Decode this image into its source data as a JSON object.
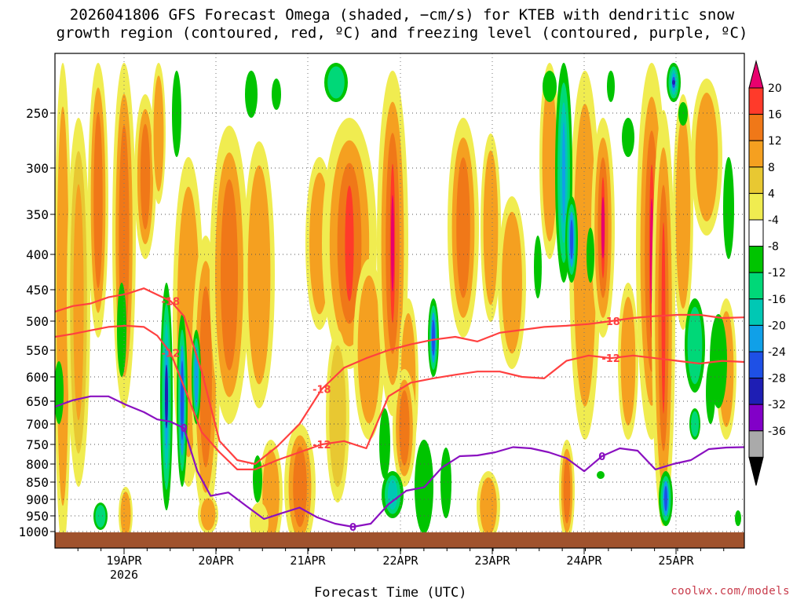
{
  "title": {
    "line1": "2026041806 GFS Forecast Omega (shaded, −cm/s) for KTEB with dendritic snow",
    "line2": "growth region (contoured, red, ºC) and freezing level (contoured, purple, ºC)"
  },
  "x_axis_title": "Forecast Time (UTC)",
  "credit": "coolwx.com/models",
  "chart_data": {
    "type": "heatmap",
    "title": "2026041806 GFS Forecast Omega (shaded, −cm/s) for KTEB with dendritic snow growth region (contoured, red, ºC) and freezing level (contoured, purple, ºC)",
    "xlabel": "Forecast Time (UTC)",
    "ylabel": "",
    "x_ticks": [
      "19APR",
      "20APR",
      "21APR",
      "22APR",
      "23APR",
      "24APR",
      "25APR"
    ],
    "x_tick_sublabel": "2026",
    "xlim": [
      "2026-04-18 06Z",
      "2026-04-25 18Z"
    ],
    "y_ticks": [
      250,
      300,
      350,
      400,
      450,
      500,
      550,
      600,
      650,
      700,
      750,
      800,
      850,
      900,
      950,
      1000
    ],
    "ylim": [
      1000,
      200
    ],
    "y_scale": "log-pressure",
    "grid": true,
    "colorbar": {
      "labels": [
        20,
        16,
        12,
        8,
        4,
        -4,
        -8,
        -12,
        -16,
        -20,
        -24,
        -28,
        -32,
        -36
      ],
      "colors": [
        "#e8006e",
        "#ff3a2a",
        "#f07818",
        "#f5a020",
        "#e8c832",
        "#f0ec50",
        "#ffffff",
        "#00c400",
        "#00d878",
        "#00c8b4",
        "#10a0e8",
        "#1e50e6",
        "#1e1eb4",
        "#8200c8",
        "#aaaaaa",
        "#000000"
      ]
    },
    "series": [
      {
        "name": "-18",
        "color": "#ff4040",
        "points": [
          [
            0.0,
            485
          ],
          [
            0.4,
            476
          ],
          [
            0.8,
            472
          ],
          [
            1.2,
            462
          ],
          [
            1.6,
            457
          ],
          [
            2.0,
            448
          ],
          [
            2.3,
            458
          ],
          [
            2.6,
            468
          ],
          [
            2.9,
            492
          ],
          [
            3.3,
            590
          ],
          [
            3.7,
            742
          ],
          [
            4.1,
            790
          ],
          [
            4.5,
            800
          ],
          [
            5.0,
            755
          ],
          [
            5.5,
            700
          ],
          [
            6.0,
            625
          ],
          [
            6.5,
            583
          ],
          [
            7.0,
            565
          ],
          [
            7.5,
            550
          ],
          [
            8.0,
            540
          ],
          [
            8.5,
            532
          ],
          [
            9.0,
            527
          ],
          [
            9.5,
            535
          ],
          [
            10.0,
            520
          ],
          [
            10.5,
            515
          ],
          [
            11.0,
            510
          ],
          [
            11.5,
            508
          ],
          [
            12.0,
            505
          ],
          [
            12.5,
            500
          ],
          [
            13.0,
            495
          ],
          [
            13.5,
            492
          ],
          [
            14.0,
            490
          ],
          [
            14.5,
            490
          ],
          [
            15.0,
            495
          ],
          [
            15.5,
            494
          ]
        ]
      },
      {
        "name": "-12",
        "color": "#ff4040",
        "points": [
          [
            0.0,
            527
          ],
          [
            0.4,
            522
          ],
          [
            0.8,
            516
          ],
          [
            1.2,
            510
          ],
          [
            1.6,
            508
          ],
          [
            2.0,
            510
          ],
          [
            2.3,
            525
          ],
          [
            2.6,
            555
          ],
          [
            2.9,
            620
          ],
          [
            3.3,
            720
          ],
          [
            3.7,
            770
          ],
          [
            4.1,
            815
          ],
          [
            4.5,
            815
          ],
          [
            5.0,
            790
          ],
          [
            5.5,
            770
          ],
          [
            6.0,
            750
          ],
          [
            6.5,
            742
          ],
          [
            7.0,
            760
          ],
          [
            7.5,
            640
          ],
          [
            8.0,
            612
          ],
          [
            8.5,
            603
          ],
          [
            9.0,
            596
          ],
          [
            9.5,
            590
          ],
          [
            10.0,
            590
          ],
          [
            10.5,
            600
          ],
          [
            11.0,
            603
          ],
          [
            11.5,
            570
          ],
          [
            12.0,
            560
          ],
          [
            12.5,
            565
          ],
          [
            13.0,
            560
          ],
          [
            13.5,
            565
          ],
          [
            14.0,
            570
          ],
          [
            14.5,
            575
          ],
          [
            15.0,
            570
          ],
          [
            15.5,
            572
          ]
        ]
      },
      {
        "name": "0",
        "color": "#8a10c0",
        "points": [
          [
            0.0,
            662
          ],
          [
            0.4,
            648
          ],
          [
            0.8,
            640
          ],
          [
            1.2,
            640
          ],
          [
            1.6,
            658
          ],
          [
            2.0,
            674
          ],
          [
            2.3,
            690
          ],
          [
            2.6,
            695
          ],
          [
            2.9,
            710
          ],
          [
            3.2,
            820
          ],
          [
            3.5,
            890
          ],
          [
            3.9,
            880
          ],
          [
            4.3,
            920
          ],
          [
            4.7,
            960
          ],
          [
            5.1,
            942
          ],
          [
            5.5,
            925
          ],
          [
            5.9,
            955
          ],
          [
            6.3,
            975
          ],
          [
            6.7,
            985
          ],
          [
            7.1,
            975
          ],
          [
            7.5,
            915
          ],
          [
            7.9,
            875
          ],
          [
            8.3,
            865
          ],
          [
            8.7,
            810
          ],
          [
            9.1,
            780
          ],
          [
            9.5,
            778
          ],
          [
            9.9,
            770
          ],
          [
            10.3,
            757
          ],
          [
            10.7,
            760
          ],
          [
            11.1,
            770
          ],
          [
            11.5,
            785
          ],
          [
            11.9,
            820
          ],
          [
            12.3,
            780
          ],
          [
            12.7,
            760
          ],
          [
            13.1,
            766
          ],
          [
            13.5,
            815
          ],
          [
            13.9,
            800
          ],
          [
            14.3,
            790
          ],
          [
            14.7,
            762
          ],
          [
            15.1,
            758
          ],
          [
            15.5,
            757
          ]
        ]
      }
    ]
  }
}
